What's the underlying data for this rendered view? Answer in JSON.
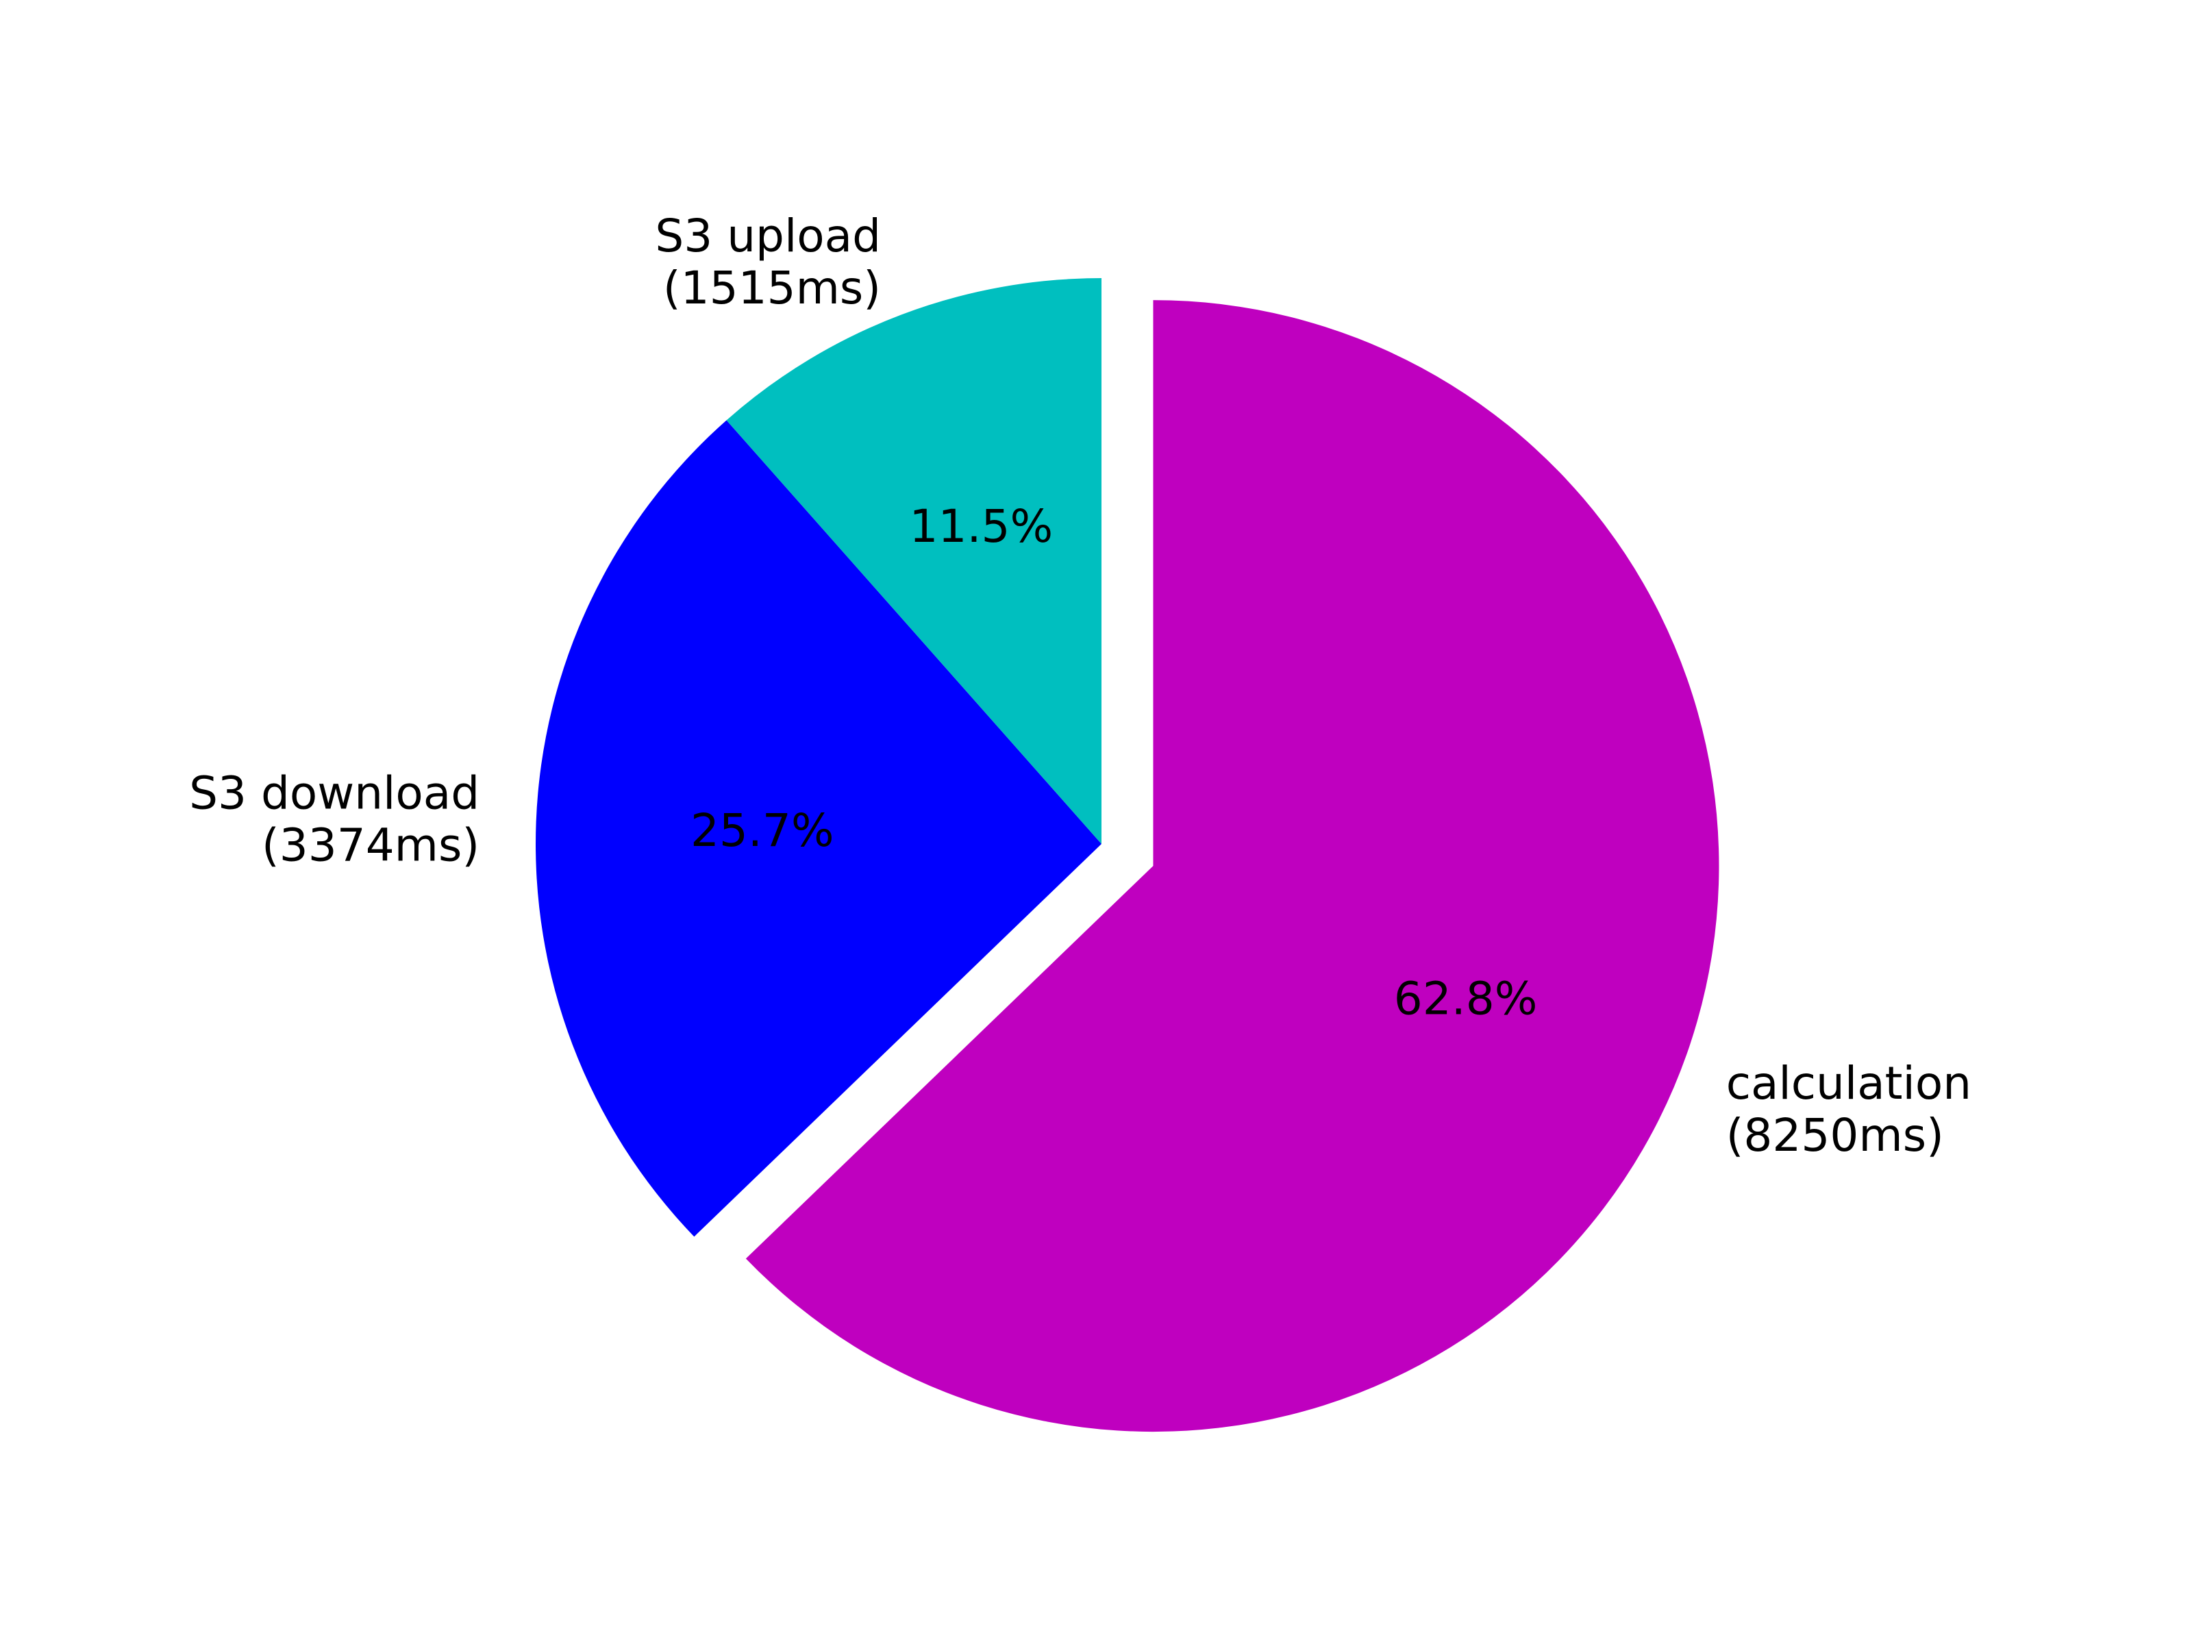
{
  "chart_data": {
    "type": "pie",
    "title": "",
    "start_angle_deg": 90,
    "direction": "clockwise",
    "slices": [
      {
        "label_line1": "calculation",
        "label_line2": "(8250ms)",
        "value": 8250,
        "percent_label": "62.8%",
        "color": "#bf00bf",
        "exploded": true
      },
      {
        "label_line1": "S3 download",
        "label_line2": "(3374ms)",
        "value": 3374,
        "percent_label": "25.7%",
        "color": "#0000ff",
        "exploded": false
      },
      {
        "label_line1": "S3 upload",
        "label_line2": "(1515ms)",
        "value": 1515,
        "percent_label": "11.5%",
        "color": "#00bfbf",
        "exploded": false
      }
    ]
  }
}
